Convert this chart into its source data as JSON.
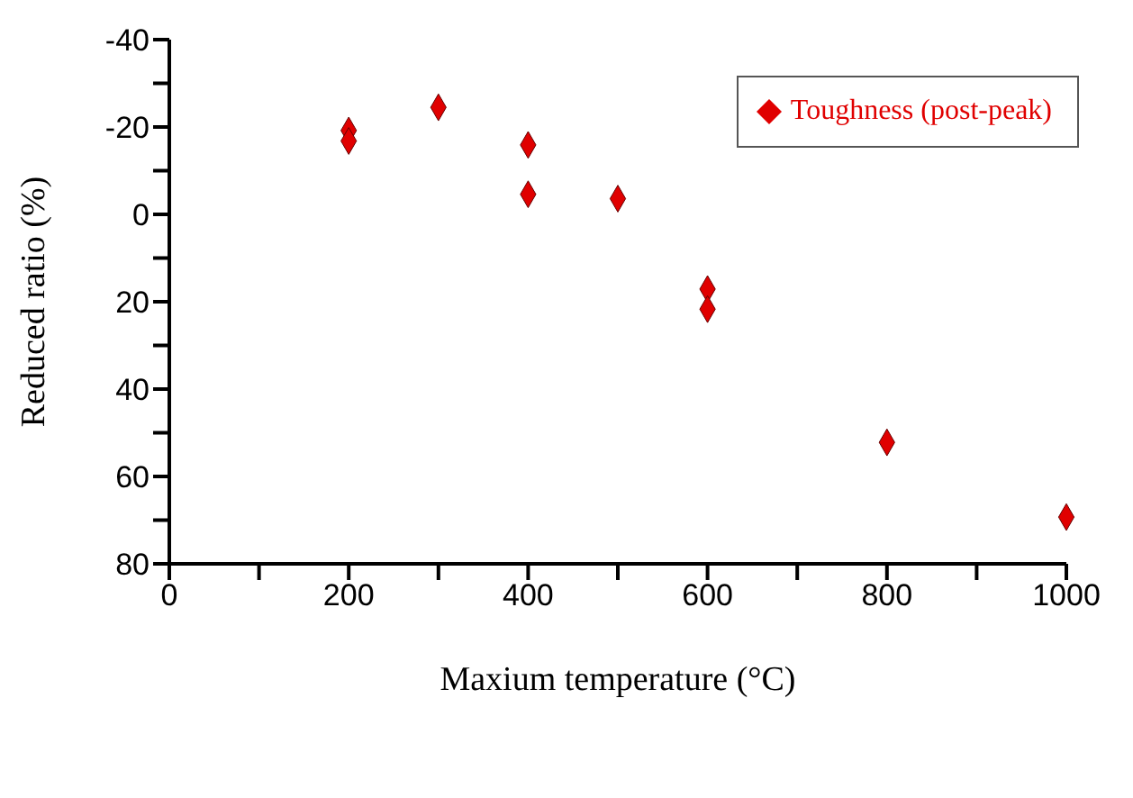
{
  "chart_data": {
    "type": "scatter",
    "xlabel": "Maxium temperature (°C)",
    "ylabel": "Reduced ratio (%)",
    "xlim": [
      0,
      1000
    ],
    "ylim": [
      80,
      -40
    ],
    "xticks": [
      0,
      {
        "value": 100,
        "label": null
      },
      200,
      {
        "value": 300,
        "label": null
      },
      400,
      {
        "value": 500,
        "label": null
      },
      600,
      {
        "value": 700,
        "label": null
      },
      800,
      {
        "value": 900,
        "label": null
      },
      1000
    ],
    "yticks": [
      -40,
      {
        "value": -30,
        "label": null
      },
      -20,
      {
        "value": -10,
        "label": null
      },
      0,
      {
        "value": 10,
        "label": null
      },
      20,
      {
        "value": 30,
        "label": null
      },
      40,
      {
        "value": 50,
        "label": null
      },
      60,
      {
        "value": 70,
        "label": null
      },
      80
    ],
    "series": [
      {
        "name": "Toughness (post-peak)",
        "color": "#e00000",
        "x": [
          200,
          200,
          300,
          400,
          400,
          500,
          600,
          600,
          800,
          1000
        ],
        "values": [
          -19.2,
          -16.8,
          -24.5,
          -15.9,
          -4.6,
          -3.6,
          17.1,
          21.7,
          52.2,
          69.3
        ]
      }
    ],
    "marker": "diamond",
    "legend": "top right",
    "grid": false
  }
}
